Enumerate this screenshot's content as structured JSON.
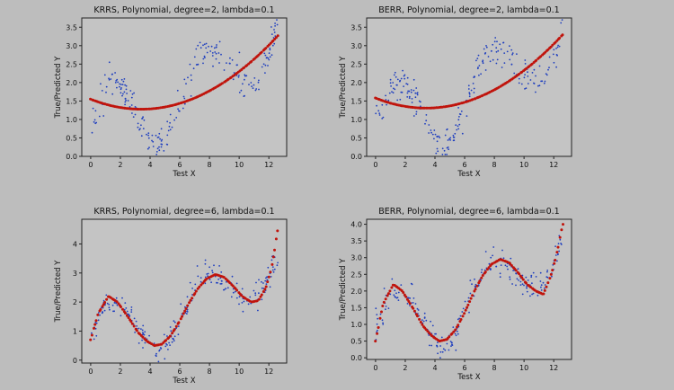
{
  "colors": {
    "background": "#bdbdbd",
    "true_points": "#1f3fbf",
    "predicted_points": "#c0140c"
  },
  "chart_data": [
    {
      "type": "scatter",
      "title": "KRRS, Polynomial, degree=2, lambda=0.1",
      "xlabel": "Test X",
      "ylabel": "True/Predicted Y",
      "xlim": [
        -0.6,
        13.2
      ],
      "ylim": [
        0,
        3.75
      ],
      "xticks": [
        0,
        2,
        4,
        6,
        8,
        10,
        12
      ],
      "yticks": [
        0.0,
        0.5,
        1.0,
        1.5,
        2.0,
        2.5,
        3.0,
        3.5
      ],
      "ytick_labels": [
        "0.0",
        "0.5",
        "1.0",
        "1.5",
        "2.0",
        "2.5",
        "3.0",
        "3.5"
      ],
      "true_model": {
        "x_range": [
          0,
          12.6
        ],
        "curve": [
          [
            0,
            1.0
          ],
          [
            0.5,
            1.2
          ],
          [
            1.2,
            1.95
          ],
          [
            2.0,
            1.95
          ],
          [
            2.6,
            1.6
          ],
          [
            3.2,
            1.15
          ],
          [
            3.8,
            0.55
          ],
          [
            4.4,
            0.2
          ],
          [
            5.0,
            0.35
          ],
          [
            5.6,
            0.9
          ],
          [
            6.2,
            1.55
          ],
          [
            6.8,
            2.25
          ],
          [
            7.4,
            2.7
          ],
          [
            8.0,
            2.9
          ],
          [
            8.5,
            2.9
          ],
          [
            9.0,
            2.75
          ],
          [
            9.6,
            2.45
          ],
          [
            10.2,
            2.15
          ],
          [
            10.8,
            1.95
          ],
          [
            11.4,
            2.15
          ],
          [
            12.0,
            2.7
          ],
          [
            12.6,
            3.5
          ]
        ],
        "noise": 0.22,
        "n": 230
      },
      "pred_model": {
        "type": "poly",
        "coef": [
          1.55,
          -0.16,
          0.0235
        ],
        "n": 130
      }
    },
    {
      "type": "scatter",
      "title": "BERR, Polynomial, degree=2, lambda=0.1",
      "xlabel": "Test X",
      "ylabel": "True/Predicted Y",
      "xlim": [
        -0.6,
        13.2
      ],
      "ylim": [
        0,
        3.75
      ],
      "xticks": [
        0,
        2,
        4,
        6,
        8,
        10,
        12
      ],
      "yticks": [
        0.0,
        0.5,
        1.0,
        1.5,
        2.0,
        2.5,
        3.0,
        3.5
      ],
      "ytick_labels": [
        "0.0",
        "0.5",
        "1.0",
        "1.5",
        "2.0",
        "2.5",
        "3.0",
        "3.5"
      ],
      "true_model": {
        "x_range": [
          0,
          12.6
        ],
        "curve": [
          [
            0,
            1.0
          ],
          [
            0.5,
            1.2
          ],
          [
            1.2,
            1.95
          ],
          [
            2.0,
            1.95
          ],
          [
            2.6,
            1.6
          ],
          [
            3.2,
            1.15
          ],
          [
            3.8,
            0.55
          ],
          [
            4.4,
            0.2
          ],
          [
            5.0,
            0.35
          ],
          [
            5.6,
            0.9
          ],
          [
            6.2,
            1.55
          ],
          [
            6.8,
            2.25
          ],
          [
            7.4,
            2.7
          ],
          [
            8.0,
            2.9
          ],
          [
            8.5,
            2.9
          ],
          [
            9.0,
            2.75
          ],
          [
            9.6,
            2.45
          ],
          [
            10.2,
            2.15
          ],
          [
            10.8,
            1.95
          ],
          [
            11.4,
            2.15
          ],
          [
            12.0,
            2.7
          ],
          [
            12.6,
            3.5
          ]
        ],
        "noise": 0.22,
        "n": 230
      },
      "pred_model": {
        "type": "poly",
        "coef": [
          1.58,
          -0.16,
          0.0235
        ],
        "n": 130
      }
    },
    {
      "type": "scatter",
      "title": "KRRS, Polynomial, degree=6, lambda=0.1",
      "xlabel": "Test X",
      "ylabel": "True/Predicted Y",
      "xlim": [
        -0.6,
        13.2
      ],
      "ylim": [
        -0.1,
        4.85
      ],
      "xticks": [
        0,
        2,
        4,
        6,
        8,
        10,
        12
      ],
      "yticks": [
        0,
        1,
        2,
        3,
        4
      ],
      "ytick_labels": [
        "0",
        "1",
        "2",
        "3",
        "4"
      ],
      "true_model": {
        "x_range": [
          0,
          12.6
        ],
        "curve": [
          [
            0,
            0.9
          ],
          [
            0.5,
            1.4
          ],
          [
            1.2,
            2.0
          ],
          [
            2.0,
            1.95
          ],
          [
            2.6,
            1.6
          ],
          [
            3.2,
            1.15
          ],
          [
            3.8,
            0.6
          ],
          [
            4.4,
            0.3
          ],
          [
            5.0,
            0.45
          ],
          [
            5.6,
            0.95
          ],
          [
            6.2,
            1.6
          ],
          [
            6.8,
            2.3
          ],
          [
            7.4,
            2.75
          ],
          [
            8.0,
            2.95
          ],
          [
            8.5,
            2.95
          ],
          [
            9.0,
            2.75
          ],
          [
            9.6,
            2.4
          ],
          [
            10.2,
            2.15
          ],
          [
            10.8,
            2.0
          ],
          [
            11.4,
            2.3
          ],
          [
            12.0,
            2.9
          ],
          [
            12.6,
            3.6
          ]
        ],
        "noise": 0.22,
        "n": 230
      },
      "pred_model": {
        "type": "curve",
        "curve": [
          [
            0,
            0.7
          ],
          [
            0.5,
            1.6
          ],
          [
            1.2,
            2.2
          ],
          [
            1.8,
            2.0
          ],
          [
            2.5,
            1.5
          ],
          [
            3.2,
            0.95
          ],
          [
            3.8,
            0.65
          ],
          [
            4.3,
            0.5
          ],
          [
            4.8,
            0.55
          ],
          [
            5.4,
            0.85
          ],
          [
            6.0,
            1.35
          ],
          [
            6.6,
            1.95
          ],
          [
            7.2,
            2.45
          ],
          [
            7.8,
            2.8
          ],
          [
            8.4,
            2.95
          ],
          [
            9.0,
            2.85
          ],
          [
            9.6,
            2.55
          ],
          [
            10.2,
            2.2
          ],
          [
            10.8,
            2.0
          ],
          [
            11.3,
            2.05
          ],
          [
            11.8,
            2.5
          ],
          [
            12.2,
            3.2
          ],
          [
            12.6,
            4.5
          ]
        ],
        "n": 130
      }
    },
    {
      "type": "scatter",
      "title": "BERR, Polynomial, degree=6, lambda=0.1",
      "xlabel": "Test X",
      "ylabel": "True/Predicted Y",
      "xlim": [
        -0.6,
        13.2
      ],
      "ylim": [
        -0.05,
        4.15
      ],
      "xticks": [
        0,
        2,
        4,
        6,
        8,
        10,
        12
      ],
      "yticks": [
        0.0,
        0.5,
        1.0,
        1.5,
        2.0,
        2.5,
        3.0,
        3.5,
        4.0
      ],
      "ytick_labels": [
        "0.0",
        "0.5",
        "1.0",
        "1.5",
        "2.0",
        "2.5",
        "3.0",
        "3.5",
        "4.0"
      ],
      "true_model": {
        "x_range": [
          0,
          12.6
        ],
        "curve": [
          [
            0,
            0.9
          ],
          [
            0.5,
            1.4
          ],
          [
            1.2,
            2.0
          ],
          [
            2.0,
            1.95
          ],
          [
            2.6,
            1.6
          ],
          [
            3.2,
            1.15
          ],
          [
            3.8,
            0.6
          ],
          [
            4.4,
            0.3
          ],
          [
            5.0,
            0.45
          ],
          [
            5.6,
            0.95
          ],
          [
            6.2,
            1.6
          ],
          [
            6.8,
            2.3
          ],
          [
            7.4,
            2.75
          ],
          [
            8.0,
            2.95
          ],
          [
            8.5,
            2.95
          ],
          [
            9.0,
            2.75
          ],
          [
            9.6,
            2.4
          ],
          [
            10.2,
            2.15
          ],
          [
            10.8,
            2.0
          ],
          [
            11.4,
            2.3
          ],
          [
            12.0,
            2.9
          ],
          [
            12.6,
            3.6
          ]
        ],
        "noise": 0.22,
        "n": 230
      },
      "pred_model": {
        "type": "curve",
        "curve": [
          [
            0,
            0.5
          ],
          [
            0.5,
            1.6
          ],
          [
            1.2,
            2.2
          ],
          [
            1.8,
            2.0
          ],
          [
            2.5,
            1.5
          ],
          [
            3.2,
            0.95
          ],
          [
            3.8,
            0.65
          ],
          [
            4.3,
            0.5
          ],
          [
            4.8,
            0.55
          ],
          [
            5.4,
            0.85
          ],
          [
            6.0,
            1.35
          ],
          [
            6.6,
            1.95
          ],
          [
            7.2,
            2.45
          ],
          [
            7.8,
            2.8
          ],
          [
            8.4,
            2.95
          ],
          [
            9.0,
            2.85
          ],
          [
            9.6,
            2.55
          ],
          [
            10.2,
            2.2
          ],
          [
            10.8,
            2.0
          ],
          [
            11.3,
            1.9
          ],
          [
            11.8,
            2.45
          ],
          [
            12.2,
            3.1
          ],
          [
            12.6,
            4.0
          ]
        ],
        "n": 130
      }
    }
  ]
}
